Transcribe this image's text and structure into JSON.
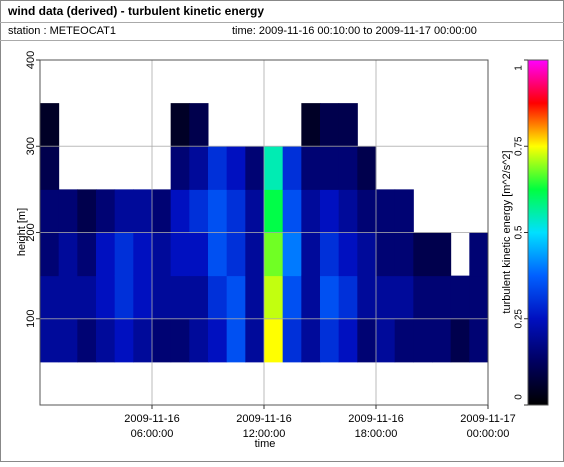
{
  "chart_data": {
    "type": "heatmap",
    "title": "wind data (derived) - turbulent kinetic energy",
    "station": "station : METEOCAT1",
    "time_range": "time: 2009-11-16 00:10:00 to 2009-11-17 00:00:00",
    "xlabel": "time",
    "ylabel": "height [m]",
    "colorbar_label": "turbulent kinetic energy [m^2/s^2]",
    "xlim": [
      0,
      24
    ],
    "xticks": [
      {
        "value": 6,
        "label": "2009-11-16 06:00:00"
      },
      {
        "value": 12,
        "label": "2009-11-16 12:00:00"
      },
      {
        "value": 18,
        "label": "2009-11-16 18:00:00"
      },
      {
        "value": 24,
        "label": "2009-11-17 00:00:00"
      }
    ],
    "ylim": [
      0,
      400
    ],
    "yticks": [
      100,
      200,
      300,
      400
    ],
    "clim": [
      0,
      1
    ],
    "cticks": [
      0,
      0.25,
      0.5,
      0.75,
      1
    ],
    "colormap": [
      "#000000",
      "#000060",
      "#0010c0",
      "#0060ff",
      "#00e0ff",
      "#00ff40",
      "#ffff00",
      "#ff0000",
      "#ff00ff"
    ],
    "grid": true,
    "x_bins": [
      0,
      1,
      2,
      3,
      4,
      5,
      6,
      7,
      8,
      9,
      10,
      11,
      12,
      13,
      14,
      15,
      16,
      17,
      18,
      19,
      20,
      21,
      22,
      23,
      24
    ],
    "y_bins": [
      50,
      100,
      150,
      200,
      250,
      300,
      350,
      400
    ],
    "values": [
      [
        0.2,
        0.2,
        0.15,
        0.15,
        0.1,
        0.05,
        null
      ],
      [
        0.2,
        0.2,
        0.2,
        0.15,
        null,
        null,
        null
      ],
      [
        0.15,
        0.2,
        0.15,
        0.1,
        null,
        null,
        null
      ],
      [
        0.2,
        0.25,
        0.25,
        0.15,
        null,
        null,
        null
      ],
      [
        0.25,
        0.3,
        0.3,
        0.2,
        null,
        null,
        null
      ],
      [
        0.2,
        0.25,
        0.25,
        0.2,
        null,
        null,
        null
      ],
      [
        0.15,
        0.2,
        0.2,
        0.15,
        null,
        null,
        null
      ],
      [
        0.15,
        0.2,
        0.25,
        0.25,
        0.15,
        0.05,
        null
      ],
      [
        0.2,
        0.2,
        0.25,
        0.3,
        0.2,
        0.1,
        null
      ],
      [
        0.25,
        0.3,
        0.35,
        0.35,
        0.3,
        null,
        null
      ],
      [
        0.35,
        0.35,
        0.3,
        0.3,
        0.25,
        null,
        null
      ],
      [
        0.2,
        0.2,
        0.2,
        0.2,
        0.15,
        null,
        null
      ],
      [
        0.75,
        0.72,
        0.68,
        0.62,
        0.55,
        null,
        null
      ],
      [
        0.3,
        0.35,
        0.4,
        0.35,
        0.3,
        null,
        null
      ],
      [
        0.2,
        0.2,
        0.2,
        0.2,
        0.15,
        0.05,
        null
      ],
      [
        0.3,
        0.35,
        0.3,
        0.25,
        0.15,
        0.1,
        null
      ],
      [
        0.25,
        0.3,
        0.25,
        0.2,
        0.15,
        0.1,
        null
      ],
      [
        0.15,
        0.2,
        0.2,
        0.15,
        0.1,
        null,
        null
      ],
      [
        0.2,
        0.2,
        0.15,
        0.15,
        null,
        null,
        null
      ],
      [
        0.15,
        0.2,
        0.15,
        0.15,
        null,
        null,
        null
      ],
      [
        0.15,
        0.15,
        0.1,
        null,
        null,
        null,
        null
      ],
      [
        0.15,
        0.15,
        0.1,
        null,
        null,
        null,
        null
      ],
      [
        0.1,
        0.15,
        null,
        null,
        null,
        null,
        null
      ],
      [
        0.15,
        0.15,
        0.15,
        null,
        null,
        null,
        null
      ]
    ]
  }
}
